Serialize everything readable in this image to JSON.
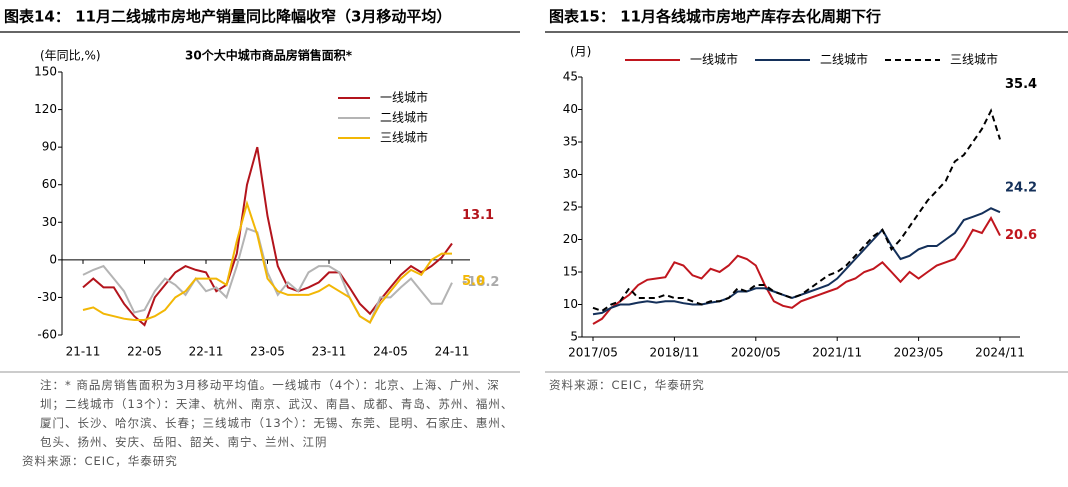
{
  "chart_data": [
    {
      "type": "line",
      "title": "图表14：  11月二线城市房地产销量同比降幅收窄（3月移动平均）",
      "subtitle": "30个大中城市商品房销售面积*",
      "y_label": "(年同比,%)",
      "categories": [
        "21-11",
        null,
        null,
        null,
        null,
        null,
        "22-05",
        null,
        null,
        null,
        null,
        null,
        "22-11",
        null,
        null,
        null,
        null,
        null,
        "23-05",
        null,
        null,
        null,
        null,
        null,
        "23-11",
        null,
        null,
        null,
        null,
        null,
        "24-05",
        null,
        null,
        null,
        null,
        null,
        "24-11"
      ],
      "ylim": [
        -60,
        150
      ],
      "yticks": [
        150,
        120,
        90,
        60,
        30,
        0,
        -30,
        -60
      ],
      "legend": "upper right",
      "series": [
        {
          "name": "一线城市",
          "color": "#b3141c",
          "style": "solid",
          "values": [
            -22,
            -15,
            -22,
            -22,
            -35,
            -45,
            -52,
            -30,
            -20,
            -10,
            -5,
            -8,
            -10,
            -25,
            -20,
            5,
            60,
            90,
            35,
            -5,
            -22,
            -25,
            -22,
            -18,
            -10,
            -10,
            -22,
            -35,
            -43,
            -32,
            -22,
            -12,
            -5,
            -10,
            -5,
            2,
            13.1
          ],
          "value_labels": [
            null,
            null,
            null,
            null,
            null,
            null,
            null,
            null,
            null,
            null,
            null,
            null,
            null,
            null,
            null,
            null,
            null,
            null,
            null,
            null,
            null,
            null,
            null,
            null,
            null,
            null,
            null,
            null,
            null,
            null,
            null,
            null,
            null,
            null,
            null,
            null,
            "13.1"
          ]
        },
        {
          "name": "二线城市",
          "color": "#b4b4b4",
          "style": "solid",
          "values": [
            -12,
            -8,
            -5,
            -15,
            -25,
            -42,
            -40,
            -25,
            -15,
            -20,
            -28,
            -15,
            -25,
            -22,
            -30,
            -5,
            25,
            22,
            -10,
            -28,
            -18,
            -25,
            -10,
            -5,
            -5,
            -10,
            -30,
            -45,
            -50,
            -30,
            -30,
            -22,
            -15,
            -25,
            -35,
            -35,
            -18.2
          ],
          "value_labels": [
            null,
            null,
            null,
            null,
            null,
            null,
            null,
            null,
            null,
            null,
            null,
            null,
            null,
            null,
            null,
            null,
            null,
            null,
            null,
            null,
            null,
            null,
            null,
            null,
            null,
            null,
            null,
            null,
            null,
            null,
            null,
            null,
            null,
            null,
            null,
            null,
            "-18.2"
          ]
        },
        {
          "name": "三线城市",
          "color": "#f2b705",
          "style": "solid",
          "values": [
            -40,
            -38,
            -43,
            -45,
            -47,
            -48,
            -48,
            -45,
            -40,
            -30,
            -25,
            -15,
            -15,
            -15,
            -20,
            15,
            45,
            20,
            -15,
            -25,
            -28,
            -28,
            -28,
            -25,
            -20,
            -25,
            -30,
            -45,
            -50,
            -35,
            -25,
            -15,
            -8,
            -12,
            0,
            5,
            5
          ],
          "value_labels": [
            null,
            null,
            null,
            null,
            null,
            null,
            null,
            null,
            null,
            null,
            null,
            null,
            null,
            null,
            null,
            null,
            null,
            null,
            null,
            null,
            null,
            null,
            null,
            null,
            null,
            null,
            null,
            null,
            null,
            null,
            null,
            null,
            null,
            null,
            null,
            null,
            "5.0"
          ]
        }
      ],
      "note": "注：* 商品房销售面积为3月移动平均值。一线城市（4个）：北京、上海、广州、深圳；二线城市（13个）：天津、杭州、南京、武汉、南昌、成都、青岛、苏州、福州、厦门、长沙、哈尔滨、长春；三线城市（13个）：无锡、东莞、昆明、石家庄、惠州、包头、扬州、安庆、岳阳、韶关、南宁、兰州、江阴",
      "source": "资料来源：CEIC，华泰研究"
    },
    {
      "type": "line",
      "title": "图表15：  11月各线城市房地产库存去化周期下行",
      "y_label": "(月)",
      "categories": [
        "2017/05",
        null,
        null,
        null,
        null,
        null,
        null,
        null,
        null,
        "2018/11",
        null,
        null,
        null,
        null,
        null,
        null,
        null,
        null,
        "2020/05",
        null,
        null,
        null,
        null,
        null,
        null,
        null,
        null,
        "2021/11",
        null,
        null,
        null,
        null,
        null,
        null,
        null,
        null,
        "2023/05",
        null,
        null,
        null,
        null,
        null,
        null,
        null,
        null,
        "2024/11"
      ],
      "ylim": [
        5,
        45
      ],
      "yticks": [
        45,
        40,
        35,
        30,
        25,
        20,
        15,
        10,
        5
      ],
      "legend": "top",
      "series": [
        {
          "name": "一线城市",
          "color": "#c0161e",
          "style": "solid",
          "values": [
            7,
            7.8,
            9.5,
            10.5,
            11.5,
            13,
            13.8,
            14,
            14.2,
            16.5,
            16,
            14.5,
            14,
            15.5,
            15,
            16,
            17.5,
            17,
            16,
            13,
            10.5,
            9.8,
            9.5,
            10.5,
            11,
            11.5,
            12,
            12.5,
            13.5,
            14,
            15,
            15.5,
            16.5,
            15,
            13.5,
            15,
            14,
            15,
            16,
            16.5,
            17,
            19,
            21.5,
            21,
            23.3,
            20.6
          ]
        },
        {
          "name": "二线城市",
          "color": "#14305a",
          "style": "solid",
          "values": [
            8.5,
            8.7,
            9.5,
            10,
            10,
            10.3,
            10.5,
            10.3,
            10.5,
            10.5,
            10.2,
            10,
            10,
            10.3,
            10.5,
            11,
            12,
            12,
            12.5,
            12.5,
            12,
            11.5,
            11,
            11.5,
            12,
            12.5,
            13,
            14,
            15.5,
            17,
            18.5,
            20,
            21.5,
            19,
            17,
            17.5,
            18.5,
            19,
            19,
            20,
            21,
            23,
            23.5,
            24,
            24.8,
            24.2
          ]
        },
        {
          "name": "三线城市",
          "color": "#000000",
          "style": "dashed",
          "values": [
            9.5,
            9,
            10,
            10.5,
            12.5,
            11,
            11,
            11,
            11.5,
            11,
            11,
            10.5,
            10,
            10.5,
            10.5,
            11,
            12.5,
            12,
            13,
            13,
            12,
            11.5,
            11,
            11.5,
            12.5,
            13.5,
            14.5,
            15,
            16,
            17.5,
            19,
            20.5,
            21.5,
            18.5,
            20,
            22,
            24,
            26,
            27.5,
            29,
            32,
            33,
            35,
            37,
            39.8,
            35.4
          ]
        }
      ],
      "source": "资料来源：CEIC，华泰研究"
    }
  ]
}
